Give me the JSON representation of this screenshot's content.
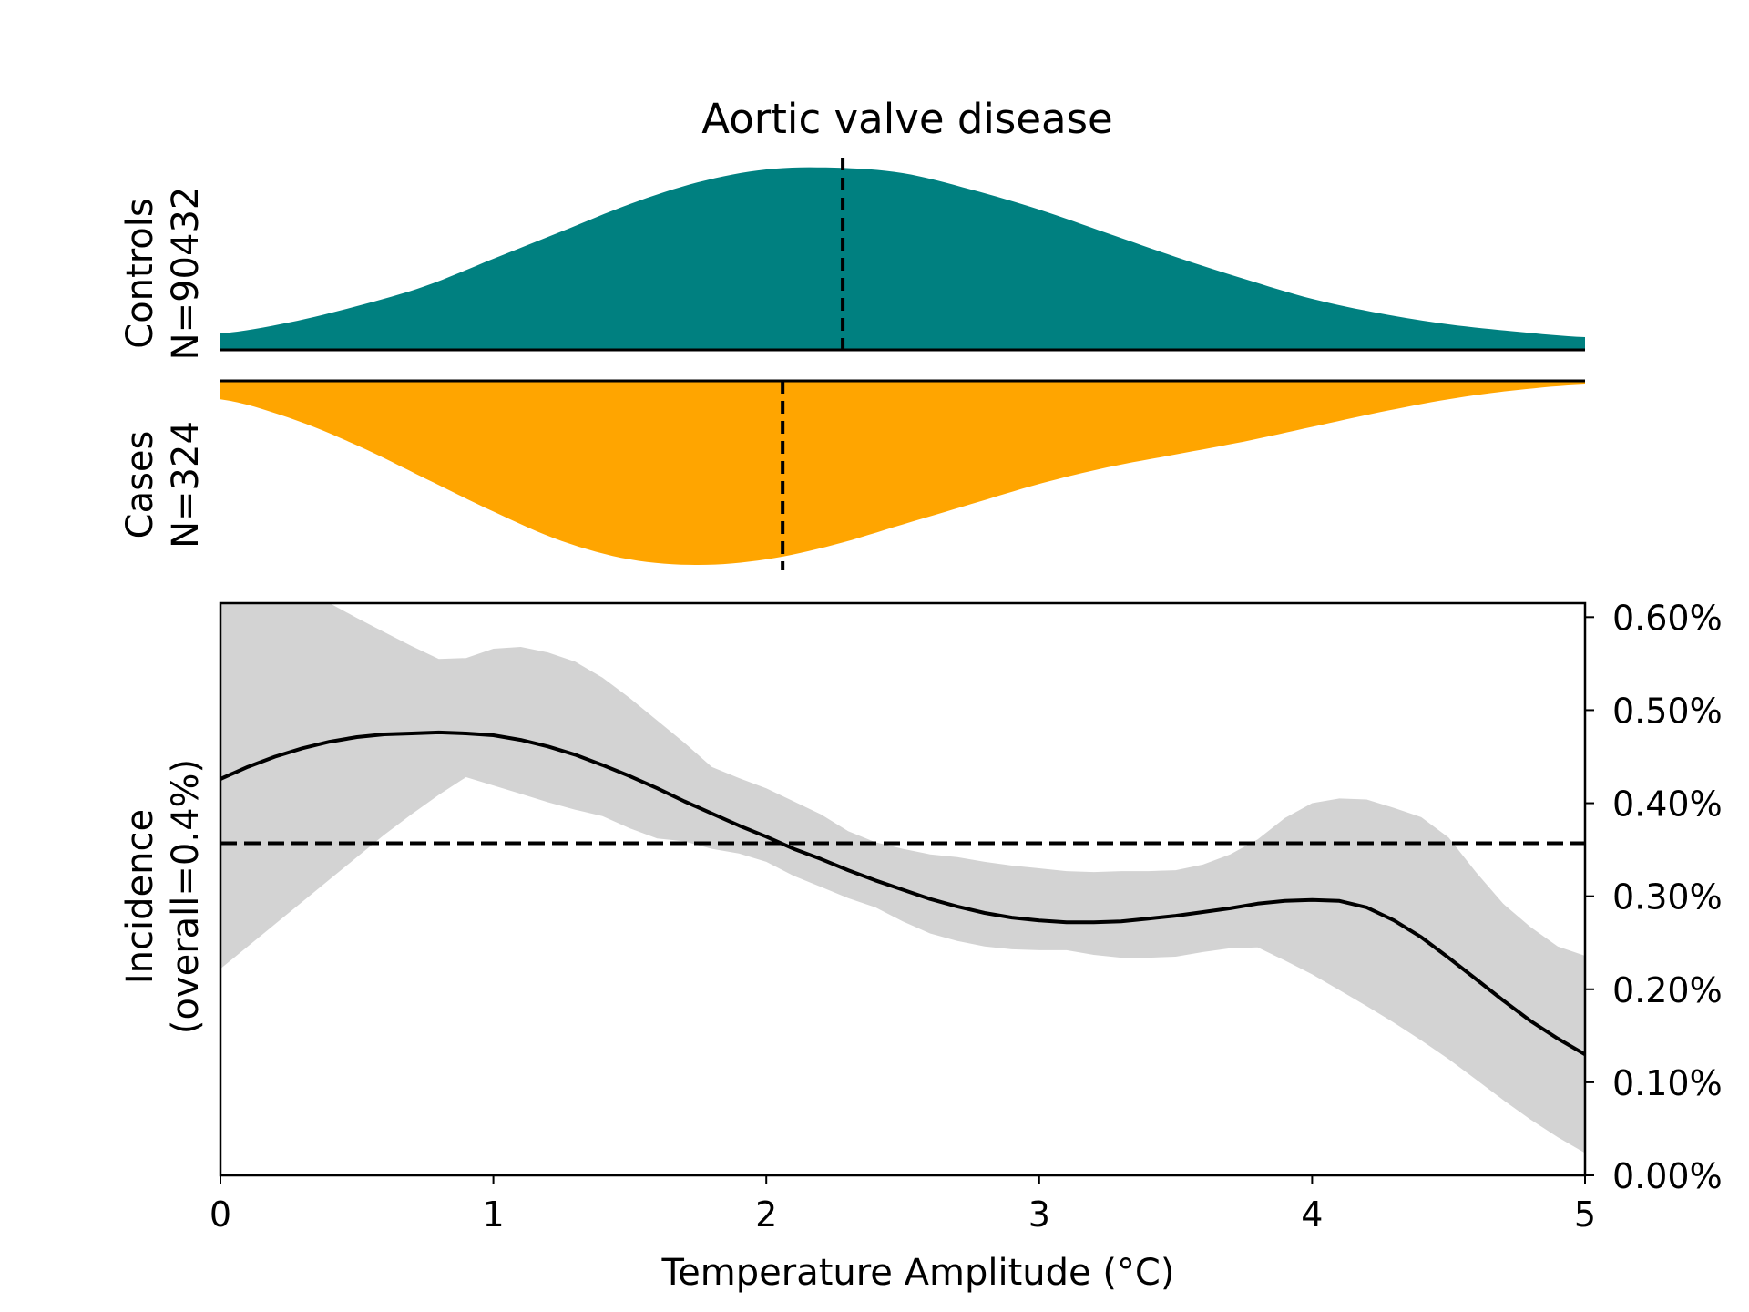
{
  "chart_data": {
    "type": "area",
    "title": "Aortic valve disease",
    "xlabel": "Temperature Amplitude (°C)",
    "xlim": [
      0,
      5
    ],
    "x_ticks": [
      "0",
      "1",
      "2",
      "3",
      "4",
      "5"
    ],
    "colors": {
      "controls": "#008080",
      "cases": "#ffa500",
      "band": "#d3d3d3",
      "line": "#000000"
    },
    "density_panels": [
      {
        "id": "controls",
        "label_line1": "Controls",
        "label_line2": "N=90432",
        "direction": "up",
        "color": "#008080",
        "mean": 2.28,
        "x": [
          0,
          0.25,
          0.5,
          0.75,
          1,
          1.25,
          1.5,
          1.75,
          2,
          2.25,
          2.5,
          2.75,
          3,
          3.25,
          3.5,
          3.75,
          4,
          4.25,
          4.5,
          4.75,
          5
        ],
        "density": [
          0.09,
          0.15,
          0.24,
          0.35,
          0.5,
          0.65,
          0.8,
          0.92,
          0.99,
          1.0,
          0.97,
          0.88,
          0.77,
          0.64,
          0.51,
          0.39,
          0.28,
          0.2,
          0.14,
          0.1,
          0.07
        ]
      },
      {
        "id": "cases",
        "label_line1": "Cases",
        "label_line2": "N=324",
        "direction": "down",
        "color": "#ffa500",
        "mean": 2.06,
        "x": [
          0,
          0.25,
          0.5,
          0.75,
          1,
          1.25,
          1.5,
          1.75,
          2,
          2.25,
          2.5,
          2.75,
          3,
          3.25,
          3.5,
          3.75,
          4,
          4.25,
          4.5,
          4.75,
          5
        ],
        "density": [
          0.1,
          0.2,
          0.35,
          0.53,
          0.71,
          0.87,
          0.97,
          1.0,
          0.97,
          0.89,
          0.78,
          0.67,
          0.56,
          0.47,
          0.4,
          0.33,
          0.25,
          0.17,
          0.1,
          0.05,
          0.02
        ]
      }
    ],
    "incidence_panel": {
      "ylabel_line1": "Incidence",
      "ylabel_line2": "(overall=0.4%)",
      "ylim": [
        0,
        0.615
      ],
      "y_ticks": [
        0,
        0.1,
        0.2,
        0.3,
        0.4,
        0.5,
        0.6
      ],
      "y_tick_labels": [
        "0.00%",
        "0.10%",
        "0.20%",
        "0.30%",
        "0.40%",
        "0.50%",
        "0.60%"
      ],
      "y_axis_side": "right",
      "overall": 0.357,
      "x": [
        0,
        0.1,
        0.2,
        0.3,
        0.4,
        0.5,
        0.6,
        0.7,
        0.8,
        0.9,
        1,
        1.1,
        1.2,
        1.3,
        1.4,
        1.5,
        1.6,
        1.7,
        1.8,
        1.9,
        2,
        2.1,
        2.2,
        2.3,
        2.4,
        2.5,
        2.6,
        2.7,
        2.8,
        2.9,
        3,
        3.1,
        3.2,
        3.3,
        3.4,
        3.5,
        3.6,
        3.7,
        3.8,
        3.9,
        4,
        4.1,
        4.2,
        4.3,
        4.4,
        4.5,
        4.6,
        4.7,
        4.8,
        4.9,
        5
      ],
      "incidence": [
        0.426,
        0.439,
        0.45,
        0.459,
        0.466,
        0.471,
        0.474,
        0.475,
        0.476,
        0.475,
        0.473,
        0.468,
        0.461,
        0.452,
        0.441,
        0.429,
        0.416,
        0.402,
        0.389,
        0.376,
        0.364,
        0.351,
        0.34,
        0.328,
        0.317,
        0.307,
        0.297,
        0.289,
        0.282,
        0.277,
        0.274,
        0.272,
        0.272,
        0.273,
        0.276,
        0.279,
        0.283,
        0.287,
        0.292,
        0.295,
        0.296,
        0.295,
        0.288,
        0.274,
        0.256,
        0.234,
        0.211,
        0.188,
        0.166,
        0.147,
        0.13
      ],
      "ci_lower": [
        0.222,
        0.246,
        0.27,
        0.294,
        0.318,
        0.342,
        0.366,
        0.388,
        0.409,
        0.428,
        0.419,
        0.41,
        0.401,
        0.393,
        0.386,
        0.373,
        0.362,
        0.359,
        0.351,
        0.346,
        0.337,
        0.322,
        0.31,
        0.298,
        0.288,
        0.273,
        0.26,
        0.252,
        0.246,
        0.243,
        0.242,
        0.242,
        0.237,
        0.234,
        0.234,
        0.235,
        0.24,
        0.244,
        0.245,
        0.231,
        0.216,
        0.199,
        0.182,
        0.164,
        0.145,
        0.125,
        0.103,
        0.081,
        0.06,
        0.041,
        0.024
      ],
      "ci_upper": [
        0.631,
        0.64,
        0.646,
        0.63,
        0.615,
        0.599,
        0.584,
        0.569,
        0.555,
        0.556,
        0.566,
        0.568,
        0.562,
        0.552,
        0.535,
        0.513,
        0.489,
        0.465,
        0.439,
        0.427,
        0.416,
        0.402,
        0.388,
        0.37,
        0.358,
        0.351,
        0.345,
        0.342,
        0.337,
        0.333,
        0.33,
        0.327,
        0.326,
        0.327,
        0.327,
        0.328,
        0.334,
        0.345,
        0.361,
        0.384,
        0.4,
        0.405,
        0.404,
        0.395,
        0.385,
        0.363,
        0.326,
        0.292,
        0.267,
        0.246,
        0.236
      ]
    }
  }
}
